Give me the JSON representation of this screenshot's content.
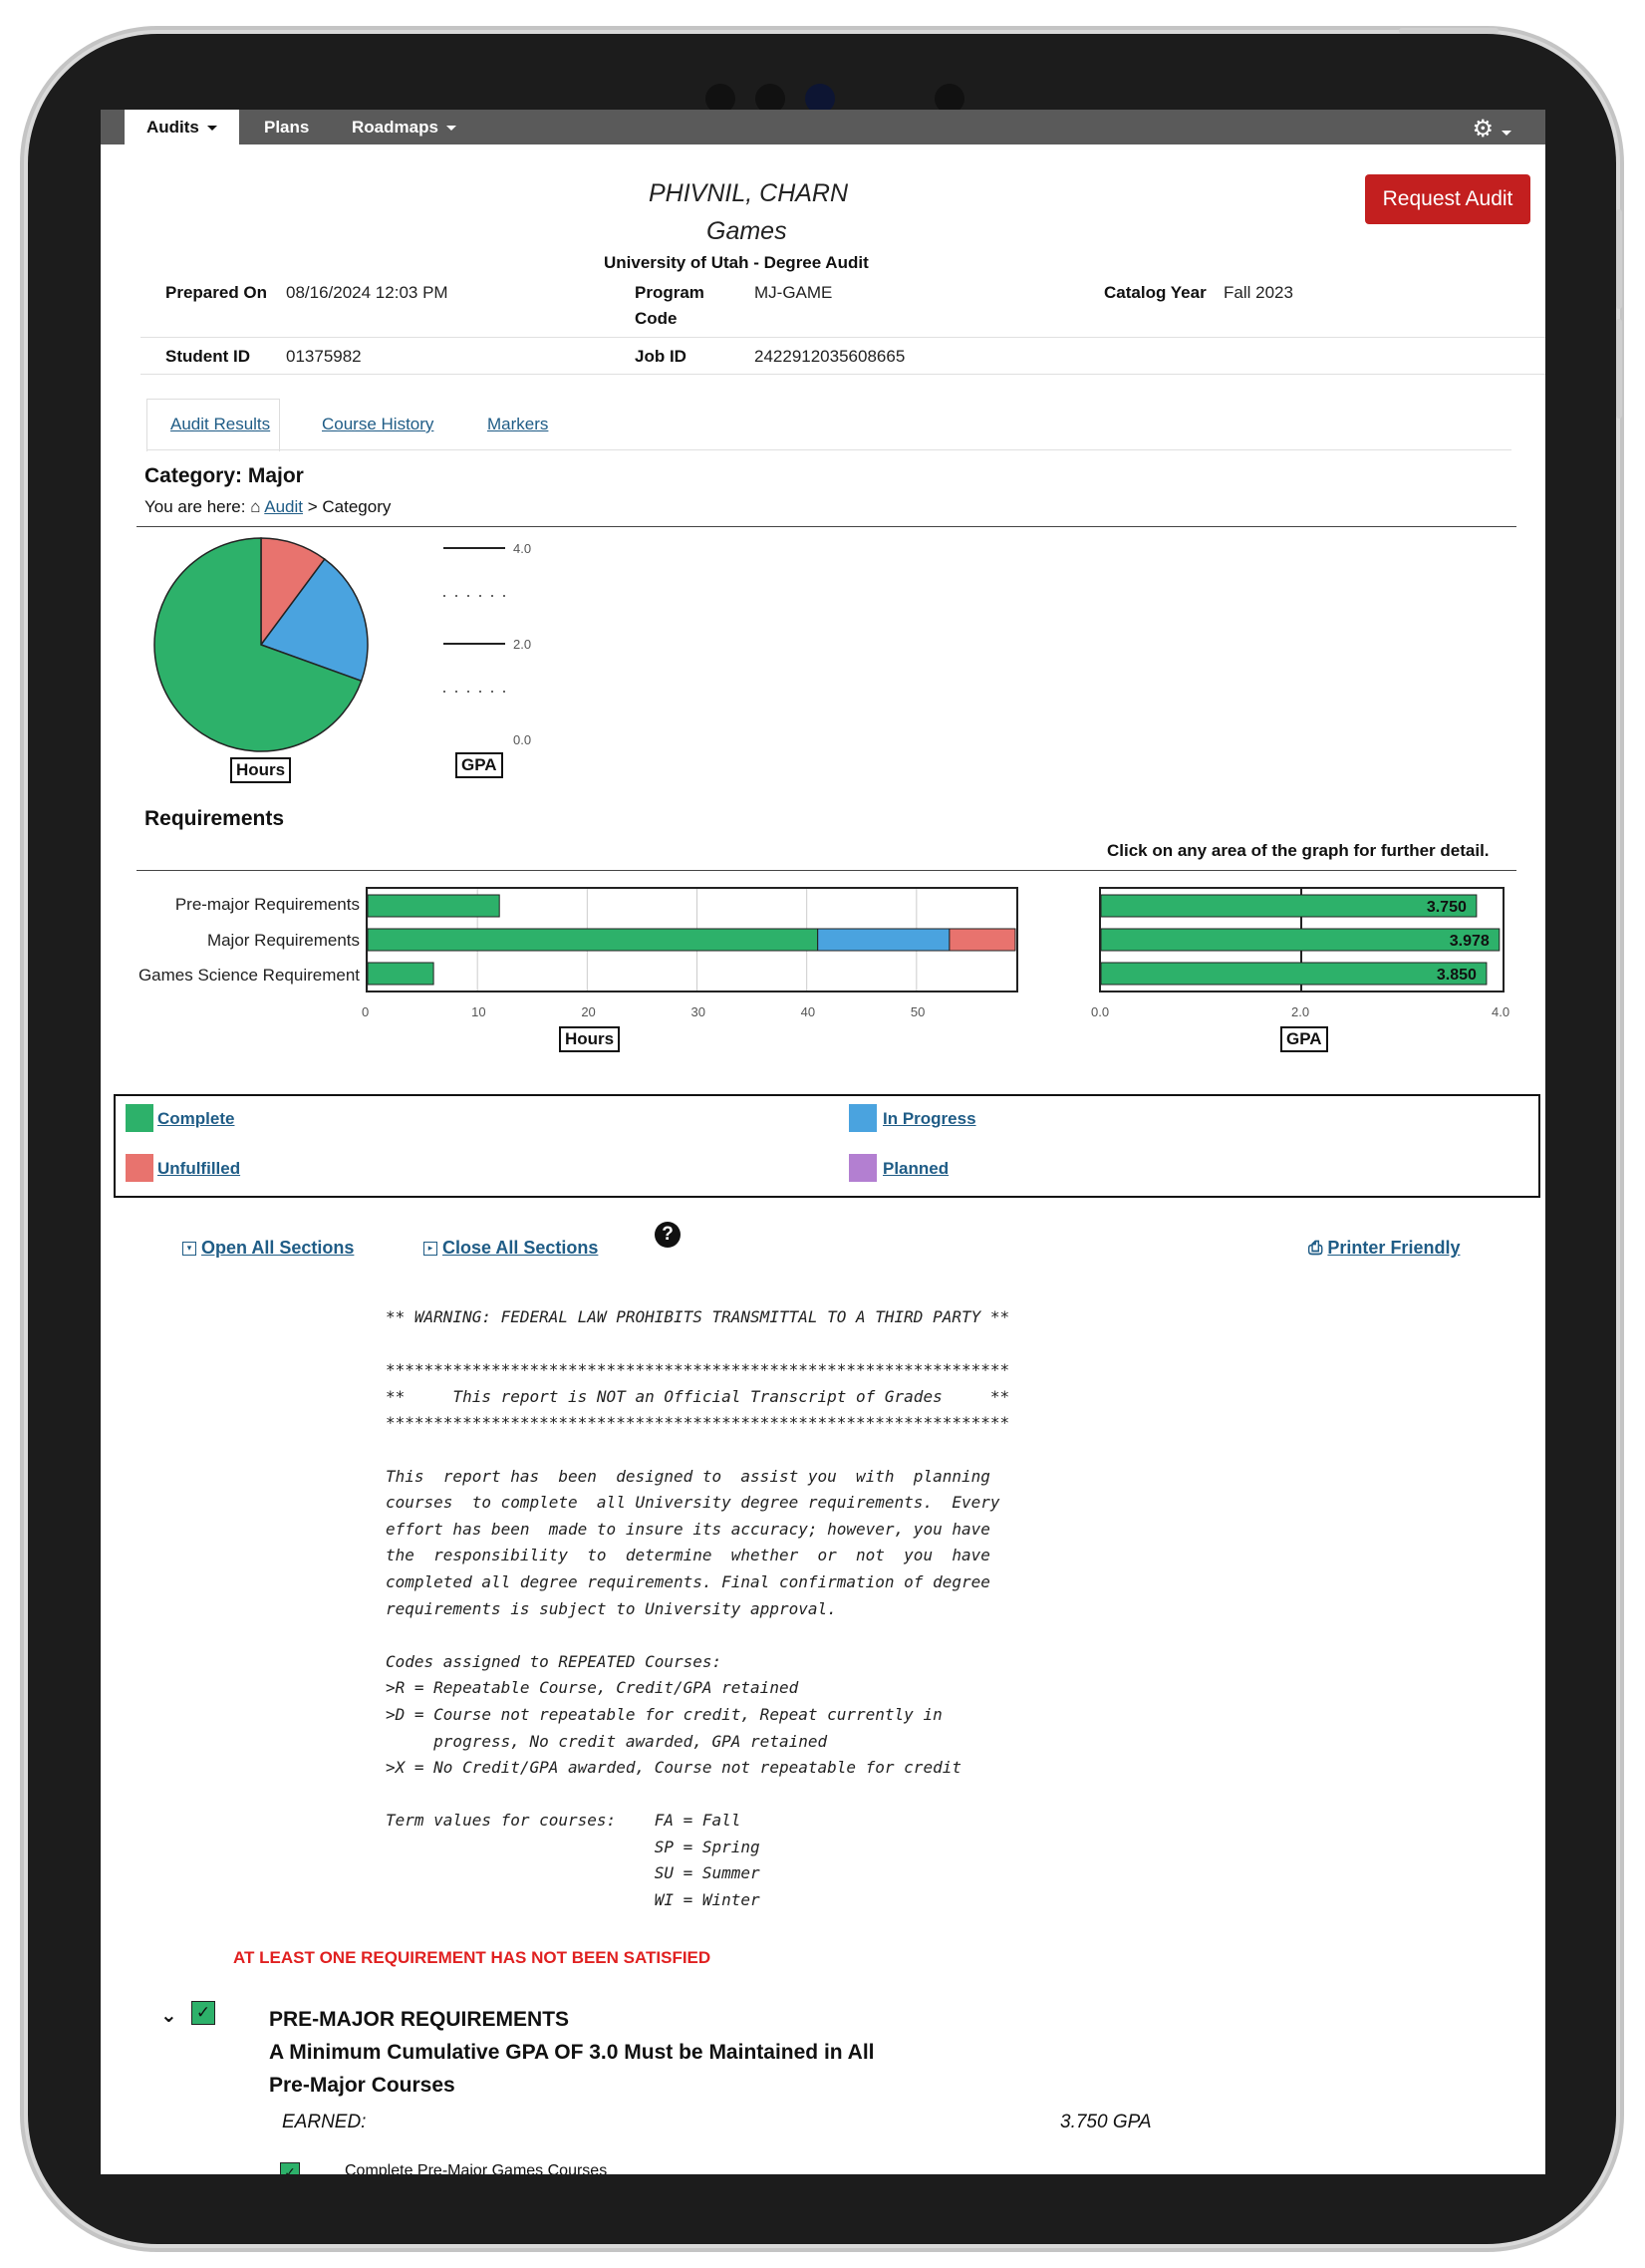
{
  "nav": {
    "items": [
      {
        "label": "Audits",
        "dropdown": true,
        "active": true
      },
      {
        "label": "Plans",
        "dropdown": false,
        "active": false
      },
      {
        "label": "Roadmaps",
        "dropdown": true,
        "active": false
      }
    ],
    "settings_icon": "gear-icon"
  },
  "header": {
    "student_name": "PHIVNIL, CHARN",
    "program_name": "Games",
    "institution": "University of Utah - Degree Audit",
    "request_button": "Request Audit",
    "prepared_on_label": "Prepared On",
    "prepared_on_value": "08/16/2024 12:03 PM",
    "program_code_label_1": "Program",
    "program_code_label_2": "Code",
    "program_code_value": "MJ-GAME",
    "catalog_year_label": "Catalog Year",
    "catalog_year_value": "Fall 2023",
    "student_id_label": "Student ID",
    "student_id_value": "01375982",
    "job_id_label": "Job ID",
    "job_id_value": "2422912035608665"
  },
  "tabs": [
    "Audit Results",
    "Course History",
    "Markers"
  ],
  "category": {
    "title": "Category: Major",
    "breadcrumb_prefix": "You are here:",
    "breadcrumb_link": "Audit",
    "breadcrumb_rest": "> Category"
  },
  "requirements_heading": "Requirements",
  "graph_hint": "Click on any area of the graph for further detail.",
  "colors": {
    "complete": "#2db16a",
    "in_progress": "#4aa3df",
    "unfulfilled": "#e8736e",
    "planned": "#b37fd1",
    "request_button": "#c31f1f",
    "nav": "#5a5a5a"
  },
  "chart_data": [
    {
      "type": "pie",
      "title": "Hours",
      "slices": [
        {
          "name": "Complete",
          "value": 41
        },
        {
          "name": "In Progress",
          "value": 12
        },
        {
          "name": "Unfulfilled",
          "value": 6
        }
      ]
    },
    {
      "type": "bar",
      "title": "GPA",
      "ylim": [
        0,
        4.0
      ],
      "ticks": [
        "4.0",
        "2.0",
        "0.0"
      ],
      "values": []
    },
    {
      "type": "bar",
      "orientation": "horizontal",
      "stacked": true,
      "title": "Hours",
      "categories": [
        "Pre-major Requirements",
        "Major Requirements",
        "Games Science Requirement"
      ],
      "series": [
        {
          "name": "Complete",
          "values": [
            12,
            41,
            6
          ]
        },
        {
          "name": "In Progress",
          "values": [
            0,
            12,
            0
          ]
        },
        {
          "name": "Unfulfilled",
          "values": [
            0,
            6,
            0
          ]
        }
      ],
      "xlim": [
        0,
        59
      ],
      "ticks": [
        0,
        10,
        20,
        30,
        40,
        50
      ]
    },
    {
      "type": "bar",
      "orientation": "horizontal",
      "title": "GPA",
      "categories": [
        "Pre-major Requirements",
        "Major Requirements",
        "Games Science Requirement"
      ],
      "values": [
        3.75,
        3.978,
        3.85
      ],
      "value_labels": [
        "3.750",
        "3.978",
        "3.850"
      ],
      "xlim": [
        0,
        4.0
      ],
      "ticks": [
        "0.0",
        "2.0",
        "4.0"
      ]
    }
  ],
  "legend": [
    "Complete",
    "In Progress",
    "Unfulfilled",
    "Planned"
  ],
  "actions": {
    "open_all": "Open All Sections",
    "close_all": "Close All Sections",
    "printer": "Printer Friendly"
  },
  "notice_lines": [
    "** WARNING: FEDERAL LAW PROHIBITS TRANSMITTAL TO A THIRD PARTY **",
    "",
    "*****************************************************************",
    "**     This report is NOT an Official Transcript of Grades     **",
    "*****************************************************************",
    "",
    "This  report has  been  designed to  assist you  with  planning",
    "courses  to complete  all University degree requirements.  Every",
    "effort has been  made to insure its accuracy; however, you have",
    "the  responsibility  to  determine  whether  or  not  you  have",
    "completed all degree requirements. Final confirmation of degree",
    "requirements is subject to University approval.",
    "",
    "Codes assigned to REPEATED Courses:",
    ">R = Repeatable Course, Credit/GPA retained",
    ">D = Course not repeatable for credit, Repeat currently in",
    "     progress, No credit awarded, GPA retained",
    ">X = No Credit/GPA awarded, Course not repeatable for credit",
    "",
    "Term values for courses:    FA = Fall",
    "                            SP = Spring",
    "                            SU = Summer",
    "                            WI = Winter"
  ],
  "warning": "AT LEAST ONE REQUIREMENT HAS NOT BEEN SATISFIED",
  "section": {
    "title": "PRE-MAJOR REQUIREMENTS",
    "subtitle_1": "A Minimum Cumulative GPA OF 3.0 Must be Maintained in All",
    "subtitle_2": "Pre-Major Courses",
    "earned_label": "EARNED:",
    "earned_value": "3.750  GPA",
    "sub_item": "Complete Pre-Major Games Courses"
  }
}
